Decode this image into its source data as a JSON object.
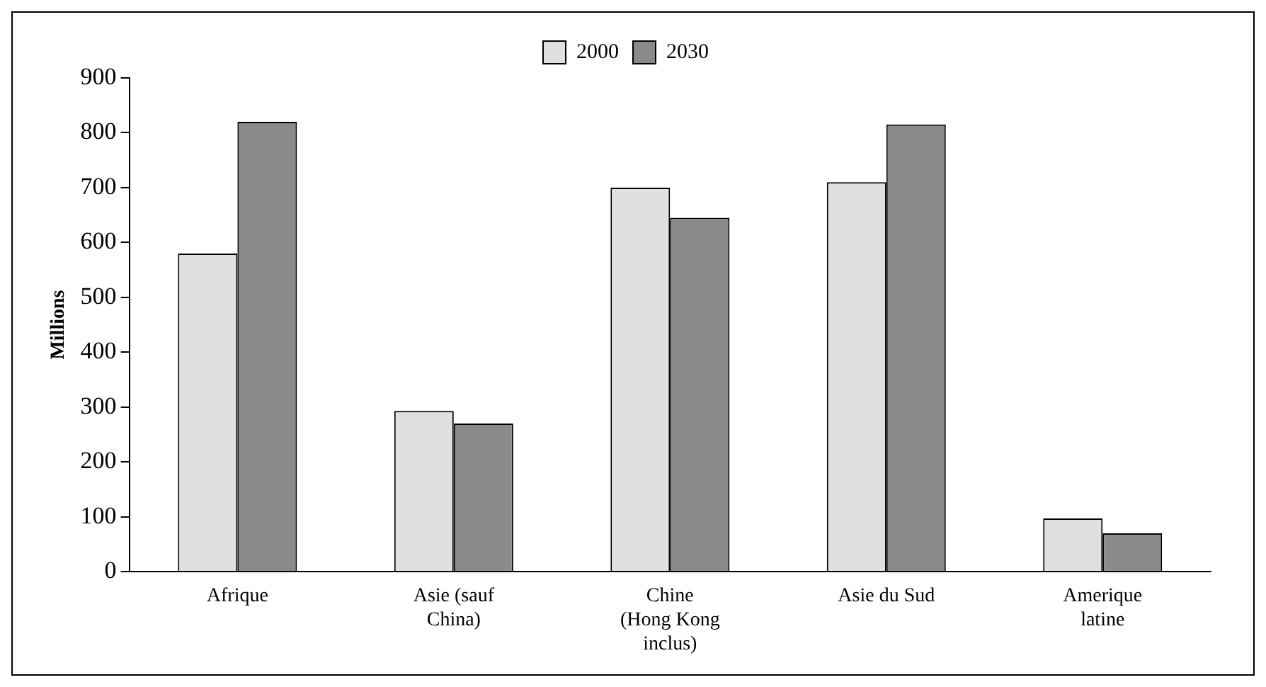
{
  "chart_data": {
    "type": "bar",
    "ylabel": "Millions",
    "categories": [
      "Afrique",
      "Asie (sauf China)",
      "Chine (Hong Kong inclus)",
      "Asie du Sud",
      "Amerique latine"
    ],
    "series": [
      {
        "name": "2000",
        "color": "#e0e0e0",
        "values": [
          580,
          293,
          700,
          710,
          97
        ]
      },
      {
        "name": "2030",
        "color": "#8a8a8a",
        "values": [
          820,
          270,
          645,
          815,
          70
        ]
      }
    ],
    "ylim": [
      0,
      900
    ],
    "yticks": [
      0,
      100,
      200,
      300,
      400,
      500,
      600,
      700,
      800,
      900
    ],
    "grid": false,
    "legend": "top"
  }
}
